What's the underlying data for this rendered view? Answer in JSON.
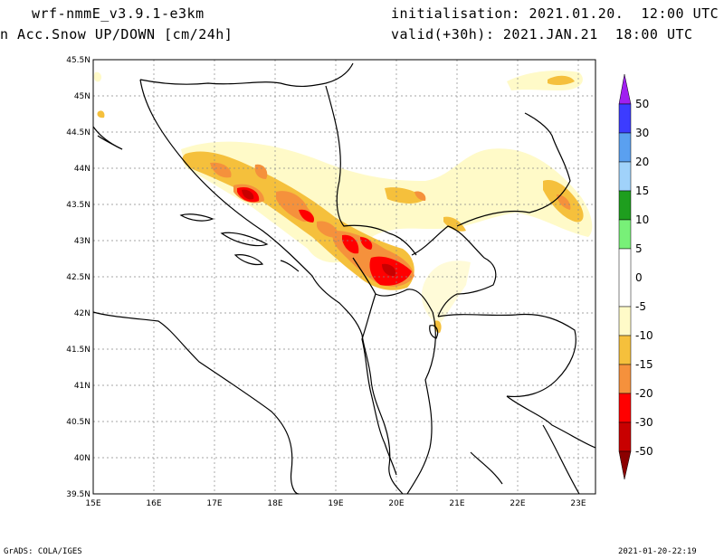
{
  "header": {
    "model": "wrf-nmmE_v3.9.1-e3km",
    "field": "n Acc.Snow UP/DOWN [cm/24h]",
    "init": "initialisation: 2021.01.20.  12:00 UTC",
    "valid": "valid(+30h): 2021.JAN.21  18:00 UTC"
  },
  "map": {
    "lat_labels": [
      "45.5N",
      "45N",
      "44.5N",
      "44N",
      "43.5N",
      "43N",
      "42.5N",
      "42N",
      "41.5N",
      "41N",
      "40.5N",
      "40N",
      "39.5N"
    ],
    "lon_labels": [
      "15E",
      "16E",
      "17E",
      "18E",
      "19E",
      "20E",
      "21E",
      "22E",
      "23E"
    ],
    "lat_range": [
      39.5,
      45.5
    ],
    "lon_range": [
      15,
      23.3
    ],
    "grid": true
  },
  "legend": {
    "labels": [
      "50",
      "30",
      "20",
      "15",
      "10",
      "5",
      "0",
      "-5",
      "-10",
      "-15",
      "-20",
      "-30",
      "-50"
    ],
    "colors": {
      "top_arrow": "#a020f0",
      "blue_dark": "#3c3cff",
      "blue_mid": "#5aa0f0",
      "blue_light": "#a0d2fa",
      "green_dark": "#1e9e1e",
      "green_light": "#78f078",
      "white": "#ffffff",
      "pale_yellow": "#fffac8",
      "gold": "#f5c03c",
      "orange": "#f5913c",
      "red": "#ff0000",
      "dark_red": "#c80000",
      "bottom_arrow": "#8b0000"
    }
  },
  "footer": {
    "left": "GrADS: COLA/IGES",
    "right": "2021-01-20-22:19"
  }
}
